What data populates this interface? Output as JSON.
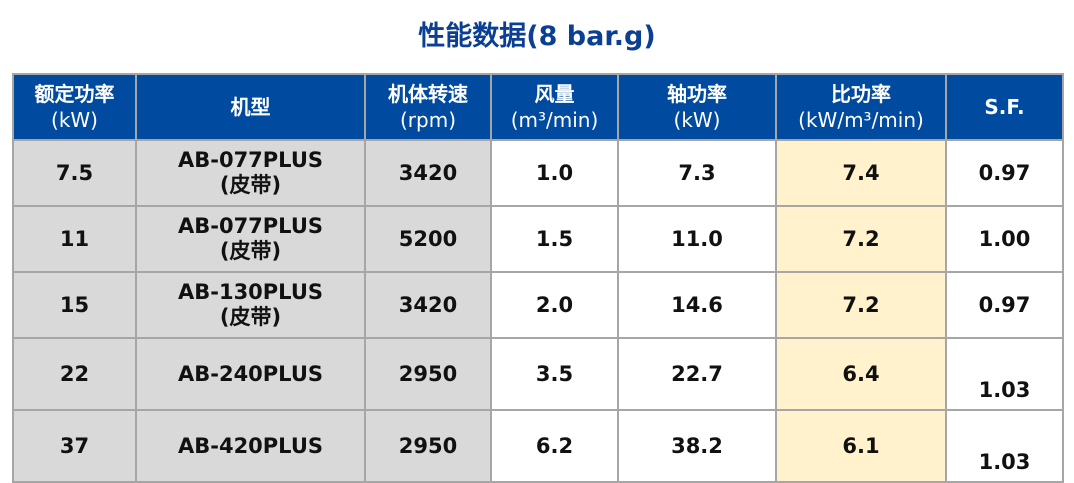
{
  "title": "性能数据(8 bar.g)",
  "columns": [
    {
      "name": "额定功率",
      "unit": "(kW)"
    },
    {
      "name": "机型",
      "unit": ""
    },
    {
      "name": "机体转速",
      "unit": "(rpm)"
    },
    {
      "name": "风量",
      "unit": "(m³/min)"
    },
    {
      "name": "轴功率",
      "unit": "(kW)"
    },
    {
      "name": "比功率",
      "unit": "(kW/m³/min)"
    },
    {
      "name": "S.F.",
      "unit": ""
    }
  ],
  "rows": [
    {
      "power": "7.5",
      "model": "AB-077PLUS",
      "drive": "(皮带)",
      "rpm": "3420",
      "flow": "1.0",
      "shaft": "7.3",
      "specific": "7.4",
      "sf": "0.97"
    },
    {
      "power": "11",
      "model": "AB-077PLUS",
      "drive": "(皮带)",
      "rpm": "5200",
      "flow": "1.5",
      "shaft": "11.0",
      "specific": "7.2",
      "sf": "1.00"
    },
    {
      "power": "15",
      "model": "AB-130PLUS",
      "drive": "(皮带)",
      "rpm": "3420",
      "flow": "2.0",
      "shaft": "14.6",
      "specific": "7.2",
      "sf": "0.97"
    },
    {
      "power": "22",
      "model": "AB-240PLUS",
      "drive": "",
      "rpm": "2950",
      "flow": "3.5",
      "shaft": "22.7",
      "specific": "6.4",
      "sf": "1.03"
    },
    {
      "power": "37",
      "model": "AB-420PLUS",
      "drive": "",
      "rpm": "2950",
      "flow": "6.2",
      "shaft": "38.2",
      "specific": "6.1",
      "sf": "1.03"
    }
  ],
  "colors": {
    "header": "#004a9f",
    "title": "#0a3f93",
    "gray_cols": "#d9d9d9",
    "highlight_col": "#fff2cc"
  }
}
